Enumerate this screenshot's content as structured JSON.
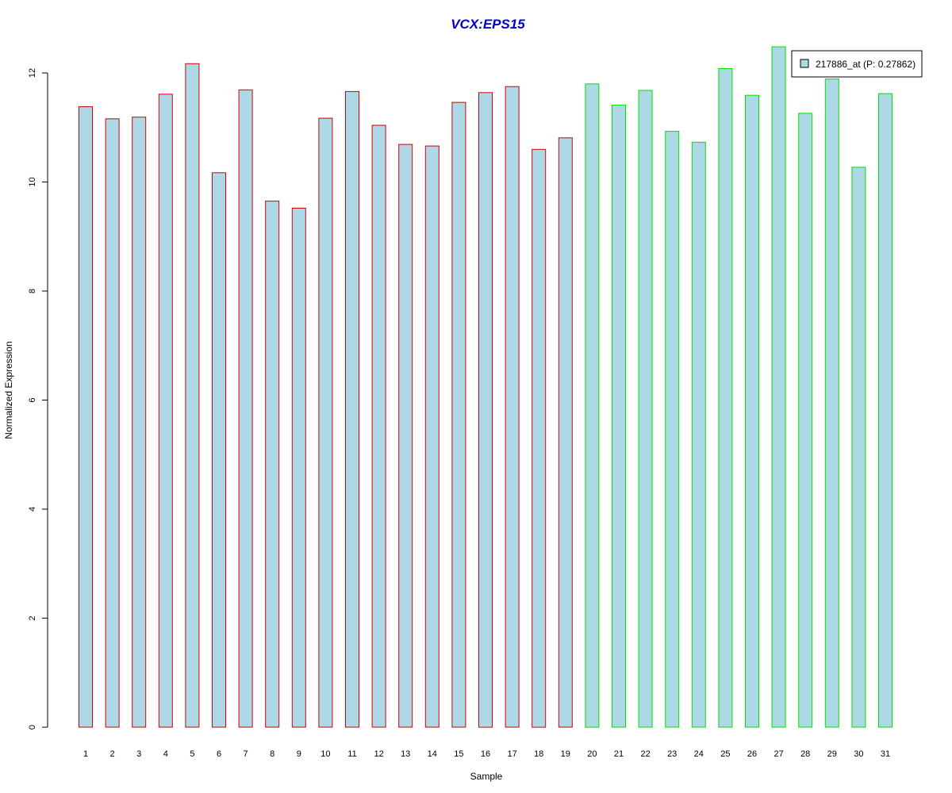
{
  "chart_data": {
    "type": "bar",
    "title": "VCX:EPS15",
    "xlabel": "Sample",
    "ylabel": "Normalized Expression",
    "categories": [
      "1",
      "2",
      "3",
      "4",
      "5",
      "6",
      "7",
      "8",
      "9",
      "10",
      "11",
      "12",
      "13",
      "14",
      "15",
      "16",
      "17",
      "18",
      "19",
      "20",
      "21",
      "22",
      "23",
      "24",
      "25",
      "26",
      "27",
      "28",
      "29",
      "30",
      "31"
    ],
    "series": [
      {
        "name": "217886_at (P: 0.27862)",
        "values": [
          11.38,
          11.16,
          11.19,
          11.61,
          12.17,
          10.17,
          11.69,
          9.65,
          9.52,
          11.17,
          11.66,
          11.04,
          10.69,
          10.66,
          11.46,
          11.64,
          11.75,
          10.6,
          10.81,
          11.8,
          11.41,
          11.68,
          10.93,
          10.73,
          12.08,
          11.59,
          12.48,
          11.26,
          11.89,
          10.27,
          11.62
        ]
      }
    ],
    "group_border_colors": [
      "#d00000",
      "#d00000",
      "#d00000",
      "#d00000",
      "#d00000",
      "#d00000",
      "#d00000",
      "#d00000",
      "#d00000",
      "#d00000",
      "#d00000",
      "#d00000",
      "#d00000",
      "#d00000",
      "#d00000",
      "#d00000",
      "#d00000",
      "#d00000",
      "#d00000",
      "#00e000",
      "#00e000",
      "#00e000",
      "#00e000",
      "#00e000",
      "#00e000",
      "#00e000",
      "#00e000",
      "#00e000",
      "#00e000",
      "#00e000",
      "#00e000"
    ],
    "bar_fill": "#add8e6",
    "title_color": "#0000cc",
    "yticks": [
      0,
      2,
      4,
      6,
      8,
      10,
      12
    ],
    "ylim": [
      0,
      12.48
    ],
    "grid": false,
    "legend_position": "top-right"
  }
}
